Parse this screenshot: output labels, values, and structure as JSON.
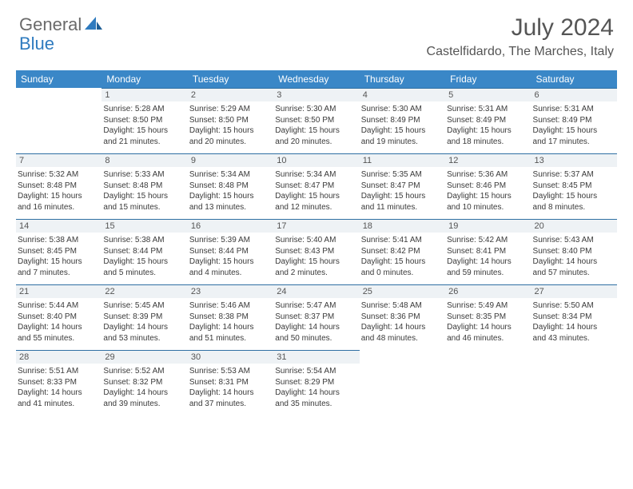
{
  "brand": {
    "part1": "General",
    "part2": "Blue"
  },
  "title": "July 2024",
  "location": "Castelfidardo, The Marches, Italy",
  "colors": {
    "header_bg": "#3a87c7",
    "header_text": "#ffffff",
    "day_border": "#2f6fa3",
    "daynum_bg": "#eef2f5",
    "brand_gray": "#6a6a6a",
    "brand_blue": "#2f7bbf"
  },
  "weekdays": [
    "Sunday",
    "Monday",
    "Tuesday",
    "Wednesday",
    "Thursday",
    "Friday",
    "Saturday"
  ],
  "weeks": [
    [
      {
        "n": "",
        "lines": []
      },
      {
        "n": "1",
        "lines": [
          "Sunrise: 5:28 AM",
          "Sunset: 8:50 PM",
          "Daylight: 15 hours",
          "and 21 minutes."
        ]
      },
      {
        "n": "2",
        "lines": [
          "Sunrise: 5:29 AM",
          "Sunset: 8:50 PM",
          "Daylight: 15 hours",
          "and 20 minutes."
        ]
      },
      {
        "n": "3",
        "lines": [
          "Sunrise: 5:30 AM",
          "Sunset: 8:50 PM",
          "Daylight: 15 hours",
          "and 20 minutes."
        ]
      },
      {
        "n": "4",
        "lines": [
          "Sunrise: 5:30 AM",
          "Sunset: 8:49 PM",
          "Daylight: 15 hours",
          "and 19 minutes."
        ]
      },
      {
        "n": "5",
        "lines": [
          "Sunrise: 5:31 AM",
          "Sunset: 8:49 PM",
          "Daylight: 15 hours",
          "and 18 minutes."
        ]
      },
      {
        "n": "6",
        "lines": [
          "Sunrise: 5:31 AM",
          "Sunset: 8:49 PM",
          "Daylight: 15 hours",
          "and 17 minutes."
        ]
      }
    ],
    [
      {
        "n": "7",
        "lines": [
          "Sunrise: 5:32 AM",
          "Sunset: 8:48 PM",
          "Daylight: 15 hours",
          "and 16 minutes."
        ]
      },
      {
        "n": "8",
        "lines": [
          "Sunrise: 5:33 AM",
          "Sunset: 8:48 PM",
          "Daylight: 15 hours",
          "and 15 minutes."
        ]
      },
      {
        "n": "9",
        "lines": [
          "Sunrise: 5:34 AM",
          "Sunset: 8:48 PM",
          "Daylight: 15 hours",
          "and 13 minutes."
        ]
      },
      {
        "n": "10",
        "lines": [
          "Sunrise: 5:34 AM",
          "Sunset: 8:47 PM",
          "Daylight: 15 hours",
          "and 12 minutes."
        ]
      },
      {
        "n": "11",
        "lines": [
          "Sunrise: 5:35 AM",
          "Sunset: 8:47 PM",
          "Daylight: 15 hours",
          "and 11 minutes."
        ]
      },
      {
        "n": "12",
        "lines": [
          "Sunrise: 5:36 AM",
          "Sunset: 8:46 PM",
          "Daylight: 15 hours",
          "and 10 minutes."
        ]
      },
      {
        "n": "13",
        "lines": [
          "Sunrise: 5:37 AM",
          "Sunset: 8:45 PM",
          "Daylight: 15 hours",
          "and 8 minutes."
        ]
      }
    ],
    [
      {
        "n": "14",
        "lines": [
          "Sunrise: 5:38 AM",
          "Sunset: 8:45 PM",
          "Daylight: 15 hours",
          "and 7 minutes."
        ]
      },
      {
        "n": "15",
        "lines": [
          "Sunrise: 5:38 AM",
          "Sunset: 8:44 PM",
          "Daylight: 15 hours",
          "and 5 minutes."
        ]
      },
      {
        "n": "16",
        "lines": [
          "Sunrise: 5:39 AM",
          "Sunset: 8:44 PM",
          "Daylight: 15 hours",
          "and 4 minutes."
        ]
      },
      {
        "n": "17",
        "lines": [
          "Sunrise: 5:40 AM",
          "Sunset: 8:43 PM",
          "Daylight: 15 hours",
          "and 2 minutes."
        ]
      },
      {
        "n": "18",
        "lines": [
          "Sunrise: 5:41 AM",
          "Sunset: 8:42 PM",
          "Daylight: 15 hours",
          "and 0 minutes."
        ]
      },
      {
        "n": "19",
        "lines": [
          "Sunrise: 5:42 AM",
          "Sunset: 8:41 PM",
          "Daylight: 14 hours",
          "and 59 minutes."
        ]
      },
      {
        "n": "20",
        "lines": [
          "Sunrise: 5:43 AM",
          "Sunset: 8:40 PM",
          "Daylight: 14 hours",
          "and 57 minutes."
        ]
      }
    ],
    [
      {
        "n": "21",
        "lines": [
          "Sunrise: 5:44 AM",
          "Sunset: 8:40 PM",
          "Daylight: 14 hours",
          "and 55 minutes."
        ]
      },
      {
        "n": "22",
        "lines": [
          "Sunrise: 5:45 AM",
          "Sunset: 8:39 PM",
          "Daylight: 14 hours",
          "and 53 minutes."
        ]
      },
      {
        "n": "23",
        "lines": [
          "Sunrise: 5:46 AM",
          "Sunset: 8:38 PM",
          "Daylight: 14 hours",
          "and 51 minutes."
        ]
      },
      {
        "n": "24",
        "lines": [
          "Sunrise: 5:47 AM",
          "Sunset: 8:37 PM",
          "Daylight: 14 hours",
          "and 50 minutes."
        ]
      },
      {
        "n": "25",
        "lines": [
          "Sunrise: 5:48 AM",
          "Sunset: 8:36 PM",
          "Daylight: 14 hours",
          "and 48 minutes."
        ]
      },
      {
        "n": "26",
        "lines": [
          "Sunrise: 5:49 AM",
          "Sunset: 8:35 PM",
          "Daylight: 14 hours",
          "and 46 minutes."
        ]
      },
      {
        "n": "27",
        "lines": [
          "Sunrise: 5:50 AM",
          "Sunset: 8:34 PM",
          "Daylight: 14 hours",
          "and 43 minutes."
        ]
      }
    ],
    [
      {
        "n": "28",
        "lines": [
          "Sunrise: 5:51 AM",
          "Sunset: 8:33 PM",
          "Daylight: 14 hours",
          "and 41 minutes."
        ]
      },
      {
        "n": "29",
        "lines": [
          "Sunrise: 5:52 AM",
          "Sunset: 8:32 PM",
          "Daylight: 14 hours",
          "and 39 minutes."
        ]
      },
      {
        "n": "30",
        "lines": [
          "Sunrise: 5:53 AM",
          "Sunset: 8:31 PM",
          "Daylight: 14 hours",
          "and 37 minutes."
        ]
      },
      {
        "n": "31",
        "lines": [
          "Sunrise: 5:54 AM",
          "Sunset: 8:29 PM",
          "Daylight: 14 hours",
          "and 35 minutes."
        ]
      },
      {
        "n": "",
        "lines": []
      },
      {
        "n": "",
        "lines": []
      },
      {
        "n": "",
        "lines": []
      }
    ]
  ]
}
